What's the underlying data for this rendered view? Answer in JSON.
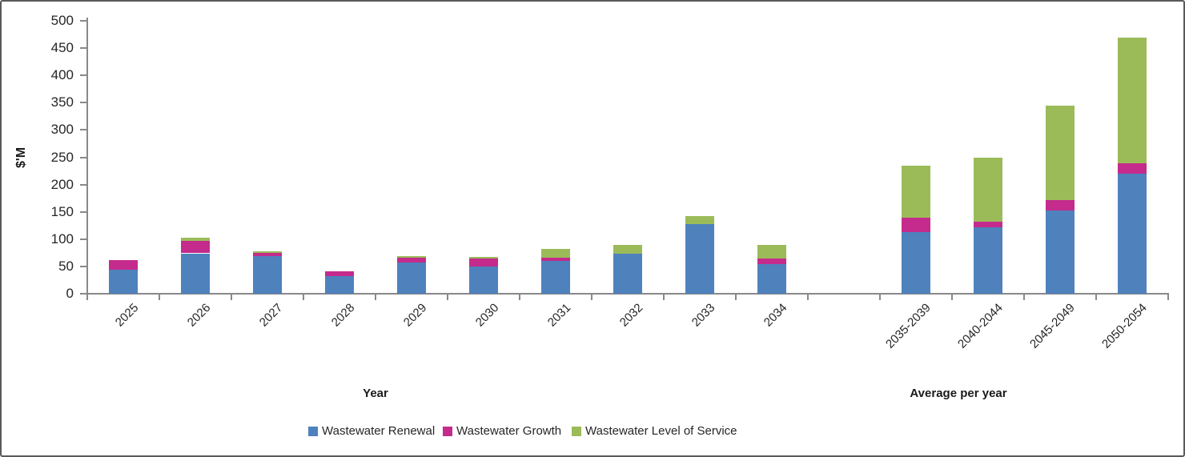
{
  "chart_data": {
    "type": "bar",
    "stacked": true,
    "title": "",
    "y_axis_title": "$'M",
    "x_axis_titles": {
      "left": "Year",
      "right": "Average per year"
    },
    "categories": [
      "2025",
      "2026",
      "2027",
      "2028",
      "2029",
      "2030",
      "2031",
      "2032",
      "2033",
      "2034",
      "2035-2039",
      "2040-2044",
      "2045-2049",
      "2050-2054"
    ],
    "category_groups": [
      "year",
      "year",
      "year",
      "year",
      "year",
      "year",
      "year",
      "year",
      "year",
      "year",
      "average",
      "average",
      "average",
      "average"
    ],
    "gap_after_index": 9,
    "series": [
      {
        "name": "Wastewater Renewal",
        "color": "#4F81BD",
        "values": [
          44,
          74,
          69,
          33,
          57,
          50,
          60,
          73,
          128,
          54,
          113,
          122,
          152,
          220
        ]
      },
      {
        "name": "Wastewater Growth",
        "color": "#C42B8C",
        "values": [
          18,
          23,
          6,
          8,
          9,
          15,
          6,
          0,
          0,
          11,
          26,
          10,
          19,
          19
        ]
      },
      {
        "name": "Wastewater Level of Service",
        "color": "#9BBB59",
        "values": [
          0,
          5,
          3,
          0,
          3,
          3,
          16,
          17,
          15,
          24,
          95,
          118,
          173,
          230
        ]
      }
    ],
    "totals": [
      62,
      102,
      78,
      41,
      69,
      68,
      82,
      90,
      143,
      89,
      234,
      250,
      344,
      469
    ],
    "ylim": [
      0,
      500
    ],
    "y_tick_step": 50,
    "y_tick_labels": [
      "0",
      "50",
      "100",
      "150",
      "200",
      "250",
      "300",
      "350",
      "400",
      "450",
      "500"
    ],
    "grid": false,
    "legend_position": "bottom"
  }
}
